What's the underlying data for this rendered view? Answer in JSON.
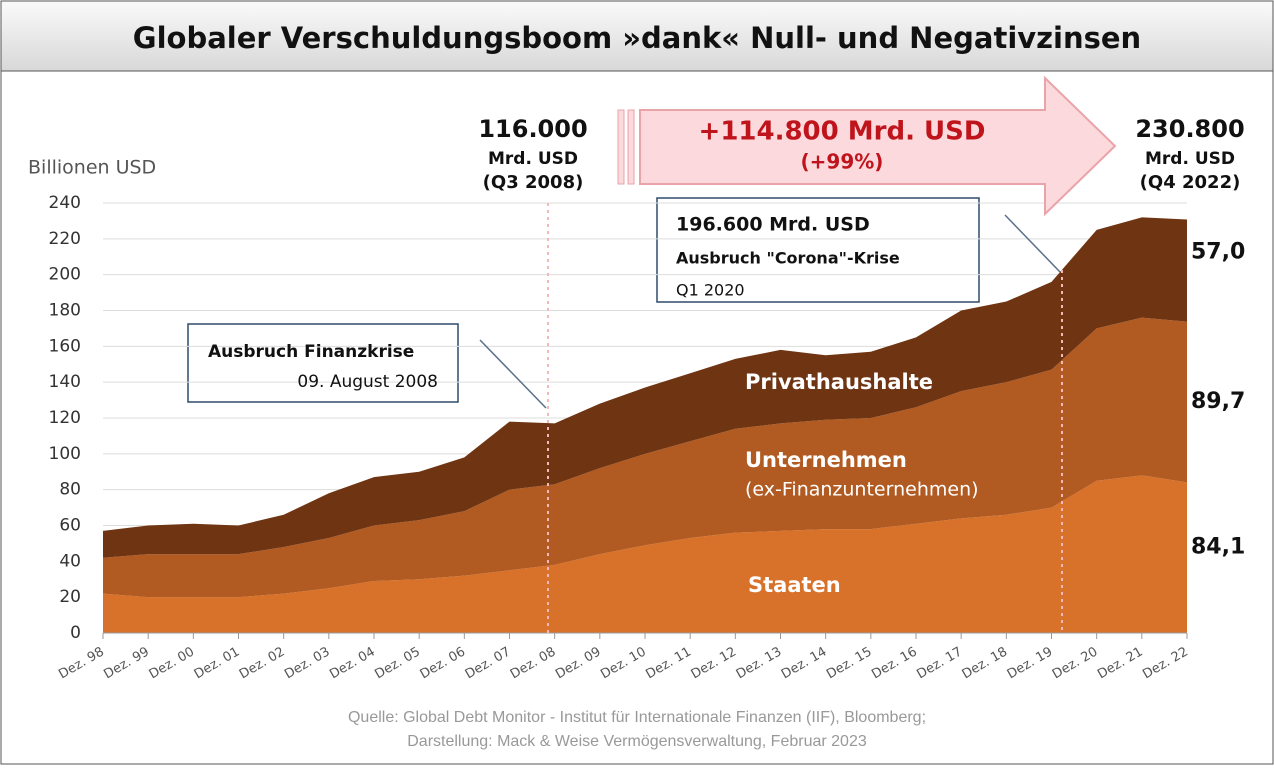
{
  "chart_data": {
    "type": "area",
    "stacked": true,
    "title": "Globaler Verschuldungsboom »dank« Null- und Negativzinsen",
    "y_label": "Billionen USD",
    "categories": [
      "Dez. 98",
      "Dez. 99",
      "Dez. 00",
      "Dez. 01",
      "Dez. 02",
      "Dez. 03",
      "Dez. 04",
      "Dez. 05",
      "Dez. 06",
      "Dez. 07",
      "Dez. 08",
      "Dez. 09",
      "Dez. 10",
      "Dez. 11",
      "Dez. 12",
      "Dez. 13",
      "Dez. 14",
      "Dez. 15",
      "Dez. 16",
      "Dez. 17",
      "Dez. 18",
      "Dez. 19",
      "Dez. 20",
      "Dez. 21",
      "Dez. 22"
    ],
    "series": [
      {
        "name": "Staaten",
        "color": "#d8722a",
        "values": [
          22,
          20,
          20,
          20,
          22,
          25,
          29,
          30,
          32,
          35,
          38,
          44,
          49,
          53,
          56,
          57,
          58,
          58,
          61,
          64,
          66,
          70,
          85,
          88,
          84.1
        ],
        "value_labels": [
          null,
          null,
          null,
          null,
          null,
          null,
          null,
          null,
          null,
          null,
          null,
          null,
          null,
          null,
          null,
          null,
          null,
          null,
          null,
          null,
          null,
          null,
          null,
          null,
          "84,1"
        ]
      },
      {
        "name": "Unternehmen",
        "sublabel": "(ex-Finanzunternehmen)",
        "color": "#b15b22",
        "values": [
          20,
          24,
          24,
          24,
          26,
          28,
          31,
          33,
          36,
          45,
          45,
          48,
          51,
          54,
          58,
          60,
          61,
          62,
          65,
          71,
          74,
          77,
          85,
          88,
          89.7
        ],
        "value_labels": [
          null,
          null,
          null,
          null,
          null,
          null,
          null,
          null,
          null,
          null,
          null,
          null,
          null,
          null,
          null,
          null,
          null,
          null,
          null,
          null,
          null,
          null,
          null,
          null,
          "89,7"
        ]
      },
      {
        "name": "Privathaushalte",
        "color": "#6f3412",
        "values": [
          15,
          16,
          17,
          16,
          18,
          25,
          27,
          27,
          30,
          38,
          34,
          36,
          37,
          38,
          39,
          41,
          36,
          37,
          39,
          45,
          45,
          49,
          55,
          56,
          57.0
        ],
        "value_labels": [
          null,
          null,
          null,
          null,
          null,
          null,
          null,
          null,
          null,
          null,
          null,
          null,
          null,
          null,
          null,
          null,
          null,
          null,
          null,
          null,
          null,
          null,
          null,
          null,
          "57,0"
        ]
      }
    ],
    "ylim": [
      0,
      240
    ],
    "yticks": [
      0,
      20,
      40,
      60,
      80,
      100,
      120,
      140,
      160,
      180,
      200,
      220,
      240
    ],
    "grid": true,
    "annotations": {
      "start": [
        "116.000",
        "Mrd. USD",
        "(Q3 2008)"
      ],
      "end": [
        "230.800",
        "Mrd. USD",
        "(Q4 2022)"
      ],
      "arrow": [
        "+114.800 Mrd. USD",
        "(+99%)"
      ],
      "crisis": [
        "Ausbruch Finanzkrise",
        "09. August 2008"
      ],
      "corona": [
        "196.600 Mrd. USD",
        "Ausbruch \"Corona\"-Krise",
        "Q1 2020"
      ]
    },
    "source": [
      "Quelle: Global Debt Monitor - Institut für Internationale Finanzen (IIF), Bloomberg;",
      "Darstellung: Mack & Weise Vermögensverwaltung, Februar 2023"
    ]
  }
}
